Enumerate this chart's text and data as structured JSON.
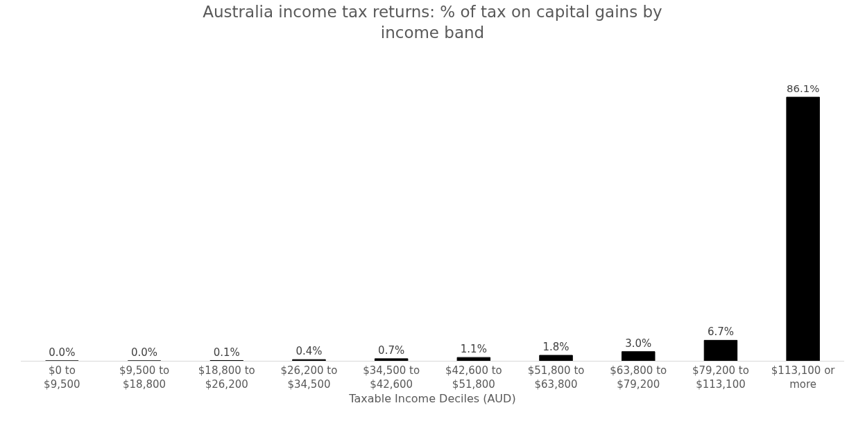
{
  "chart_data": {
    "type": "bar",
    "title": "Australia income tax returns: % of tax on capital gains by\nincome band",
    "xlabel": "Taxable Income Deciles (AUD)",
    "categories": [
      "$0 to\n$9,500",
      "$9,500 to\n$18,800",
      "$18,800 to\n$26,200",
      "$26,200 to\n$34,500",
      "$34,500 to\n$42,600",
      "$42,600 to\n$51,800",
      "$51,800 to\n$63,800",
      "$63,800 to\n$79,200",
      "$79,200 to\n$113,100",
      "$113,100 or\nmore"
    ],
    "values": [
      0.0,
      0.0,
      0.1,
      0.4,
      0.7,
      1.1,
      1.8,
      3.0,
      6.7,
      86.1
    ],
    "value_labels": [
      "0.0%",
      "0.0%",
      "0.1%",
      "0.4%",
      "0.7%",
      "1.1%",
      "1.8%",
      "3.0%",
      "6.7%",
      "86.1%"
    ],
    "color": "#000000",
    "legend": false
  }
}
